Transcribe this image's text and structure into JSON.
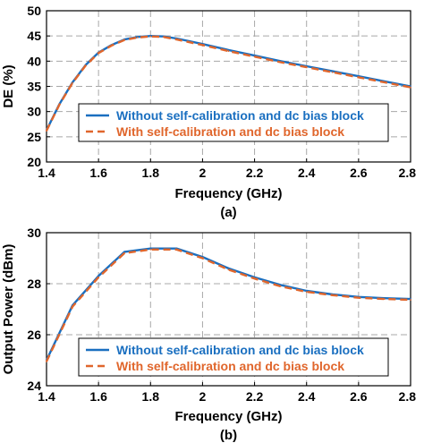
{
  "colors": {
    "series1": "#1a6fc0",
    "series2": "#e0662c"
  },
  "chart_data": [
    {
      "type": "line",
      "panel_label": "(a)",
      "xlabel": "Frequency (GHz)",
      "ylabel": "DE (%)",
      "xlim": [
        1.4,
        2.8
      ],
      "ylim": [
        20,
        50
      ],
      "xticks": [
        1.4,
        1.6,
        1.8,
        2.0,
        2.2,
        2.4,
        2.6,
        2.8
      ],
      "xticklabels": [
        "1.4",
        "1.6",
        "1.8",
        "2",
        "2.2",
        "2.4",
        "2.6",
        "2.8"
      ],
      "yticks": [
        20,
        25,
        30,
        35,
        40,
        45,
        50
      ],
      "yticklabels": [
        "20",
        "25",
        "30",
        "35",
        "40",
        "45",
        "50"
      ],
      "grid": true,
      "legend_position": "lower-center",
      "series": [
        {
          "name": "Without self-calibration and dc bias block",
          "style": "solid",
          "x": [
            1.4,
            1.45,
            1.5,
            1.55,
            1.6,
            1.65,
            1.7,
            1.75,
            1.8,
            1.85,
            1.9,
            2.0,
            2.1,
            2.2,
            2.3,
            2.4,
            2.5,
            2.6,
            2.7,
            2.8
          ],
          "y": [
            26.3,
            31.5,
            35.8,
            39.2,
            41.7,
            43.2,
            44.3,
            44.8,
            45.0,
            44.9,
            44.5,
            43.4,
            42.2,
            41.1,
            40.0,
            39.0,
            38.0,
            37.0,
            36.0,
            35.0
          ]
        },
        {
          "name": "With self-calibration and dc bias block",
          "style": "dashed",
          "x": [
            1.4,
            1.45,
            1.5,
            1.55,
            1.6,
            1.65,
            1.7,
            1.75,
            1.8,
            1.85,
            1.9,
            2.0,
            2.1,
            2.2,
            2.3,
            2.4,
            2.5,
            2.6,
            2.7,
            2.8
          ],
          "y": [
            26.2,
            31.4,
            35.7,
            39.1,
            41.6,
            43.1,
            44.2,
            44.7,
            44.9,
            44.8,
            44.3,
            43.2,
            42.0,
            40.9,
            39.8,
            38.8,
            37.8,
            36.8,
            35.8,
            34.8
          ]
        }
      ]
    },
    {
      "type": "line",
      "panel_label": "(b)",
      "xlabel": "Frequency (GHz)",
      "ylabel": "Output Power (dBm)",
      "xlim": [
        1.4,
        2.8
      ],
      "ylim": [
        24,
        30
      ],
      "xticks": [
        1.4,
        1.6,
        1.8,
        2.0,
        2.2,
        2.4,
        2.6,
        2.8
      ],
      "xticklabels": [
        "1.4",
        "1.6",
        "1.8",
        "2",
        "2.2",
        "2.4",
        "2.6",
        "2.8"
      ],
      "yticks": [
        24,
        26,
        28,
        30
      ],
      "yticklabels": [
        "24",
        "26",
        "28",
        "30"
      ],
      "grid": true,
      "legend_position": "lower-center",
      "series": [
        {
          "name": "Without self-calibration and dc bias block",
          "style": "solid",
          "x": [
            1.4,
            1.5,
            1.6,
            1.7,
            1.8,
            1.9,
            2.0,
            2.1,
            2.2,
            2.3,
            2.4,
            2.5,
            2.6,
            2.7,
            2.8
          ],
          "y": [
            25.0,
            27.15,
            28.3,
            29.25,
            29.38,
            29.38,
            29.05,
            28.6,
            28.25,
            27.95,
            27.72,
            27.58,
            27.48,
            27.43,
            27.4
          ]
        },
        {
          "name": "With self-calibration and dc bias block",
          "style": "dashed",
          "x": [
            1.4,
            1.5,
            1.6,
            1.7,
            1.8,
            1.9,
            2.0,
            2.1,
            2.2,
            2.3,
            2.4,
            2.5,
            2.6,
            2.7,
            2.8
          ],
          "y": [
            24.95,
            27.1,
            28.25,
            29.2,
            29.34,
            29.34,
            29.0,
            28.55,
            28.2,
            27.9,
            27.68,
            27.55,
            27.45,
            27.4,
            27.37
          ]
        }
      ]
    }
  ]
}
